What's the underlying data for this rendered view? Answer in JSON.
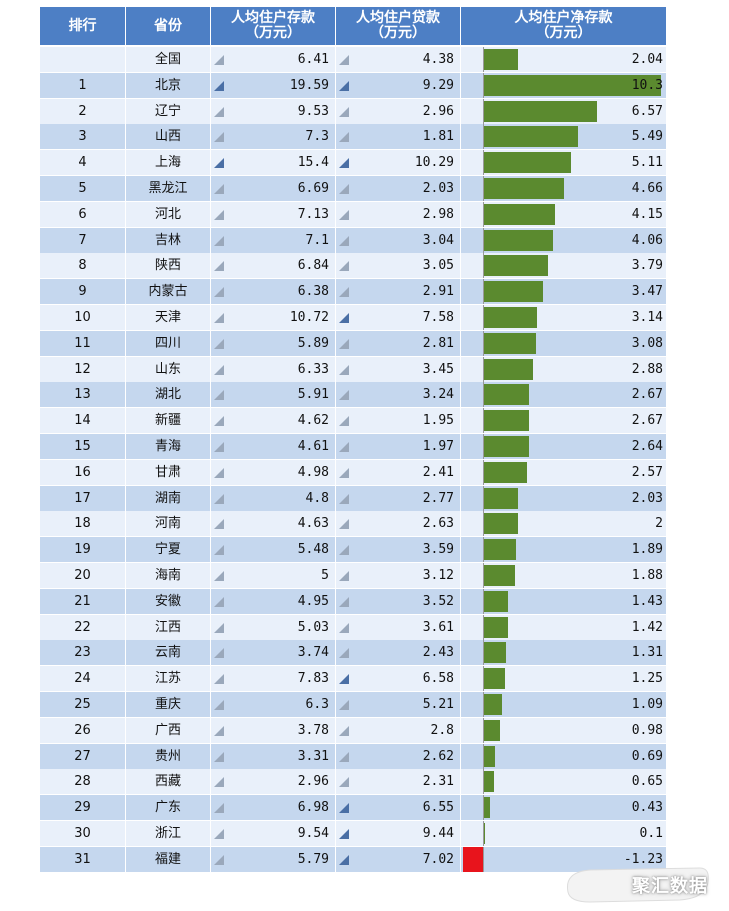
{
  "header": {
    "rank": "排行",
    "province": "省份",
    "deposit": "人均住户存款\n（万元）",
    "loan": "人均住户贷款\n（万元）",
    "net": "人均住户净存款\n（万元）"
  },
  "colors": {
    "header_bg": "#4d7fc5",
    "row_light": "#e9f0fa",
    "row_dark": "#c5d7ee",
    "bar_pos": "#5b8a2f",
    "bar_neg": "#e8141c"
  },
  "watermark": "聚汇数据",
  "chart_data": {
    "type": "table",
    "columns": [
      "排行",
      "省份",
      "人均住户存款（万元）",
      "人均住户贷款（万元）",
      "人均住户净存款（万元）"
    ],
    "rows": [
      {
        "rank": "",
        "province": "全国",
        "deposit": "6.41",
        "loan": "4.38",
        "net": "2.04"
      },
      {
        "rank": "1",
        "province": "北京",
        "deposit": "19.59",
        "loan": "9.29",
        "net": "10.3"
      },
      {
        "rank": "2",
        "province": "辽宁",
        "deposit": "9.53",
        "loan": "2.96",
        "net": "6.57"
      },
      {
        "rank": "3",
        "province": "山西",
        "deposit": "7.3",
        "loan": "1.81",
        "net": "5.49"
      },
      {
        "rank": "4",
        "province": "上海",
        "deposit": "15.4",
        "loan": "10.29",
        "net": "5.11"
      },
      {
        "rank": "5",
        "province": "黑龙江",
        "deposit": "6.69",
        "loan": "2.03",
        "net": "4.66"
      },
      {
        "rank": "6",
        "province": "河北",
        "deposit": "7.13",
        "loan": "2.98",
        "net": "4.15"
      },
      {
        "rank": "7",
        "province": "吉林",
        "deposit": "7.1",
        "loan": "3.04",
        "net": "4.06"
      },
      {
        "rank": "8",
        "province": "陕西",
        "deposit": "6.84",
        "loan": "3.05",
        "net": "3.79"
      },
      {
        "rank": "9",
        "province": "内蒙古",
        "deposit": "6.38",
        "loan": "2.91",
        "net": "3.47"
      },
      {
        "rank": "10",
        "province": "天津",
        "deposit": "10.72",
        "loan": "7.58",
        "net": "3.14"
      },
      {
        "rank": "11",
        "province": "四川",
        "deposit": "5.89",
        "loan": "2.81",
        "net": "3.08"
      },
      {
        "rank": "12",
        "province": "山东",
        "deposit": "6.33",
        "loan": "3.45",
        "net": "2.88"
      },
      {
        "rank": "13",
        "province": "湖北",
        "deposit": "5.91",
        "loan": "3.24",
        "net": "2.67"
      },
      {
        "rank": "14",
        "province": "新疆",
        "deposit": "4.62",
        "loan": "1.95",
        "net": "2.67"
      },
      {
        "rank": "15",
        "province": "青海",
        "deposit": "4.61",
        "loan": "1.97",
        "net": "2.64"
      },
      {
        "rank": "16",
        "province": "甘肃",
        "deposit": "4.98",
        "loan": "2.41",
        "net": "2.57"
      },
      {
        "rank": "17",
        "province": "湖南",
        "deposit": "4.8",
        "loan": "2.77",
        "net": "2.03"
      },
      {
        "rank": "18",
        "province": "河南",
        "deposit": "4.63",
        "loan": "2.63",
        "net": "2"
      },
      {
        "rank": "19",
        "province": "宁夏",
        "deposit": "5.48",
        "loan": "3.59",
        "net": "1.89"
      },
      {
        "rank": "20",
        "province": "海南",
        "deposit": "5",
        "loan": "3.12",
        "net": "1.88"
      },
      {
        "rank": "21",
        "province": "安徽",
        "deposit": "4.95",
        "loan": "3.52",
        "net": "1.43"
      },
      {
        "rank": "22",
        "province": "江西",
        "deposit": "5.03",
        "loan": "3.61",
        "net": "1.42"
      },
      {
        "rank": "23",
        "province": "云南",
        "deposit": "3.74",
        "loan": "2.43",
        "net": "1.31"
      },
      {
        "rank": "24",
        "province": "江苏",
        "deposit": "7.83",
        "loan": "6.58",
        "net": "1.25"
      },
      {
        "rank": "25",
        "province": "重庆",
        "deposit": "6.3",
        "loan": "5.21",
        "net": "1.09"
      },
      {
        "rank": "26",
        "province": "广西",
        "deposit": "3.78",
        "loan": "2.8",
        "net": "0.98"
      },
      {
        "rank": "27",
        "province": "贵州",
        "deposit": "3.31",
        "loan": "2.62",
        "net": "0.69"
      },
      {
        "rank": "28",
        "province": "西藏",
        "deposit": "2.96",
        "loan": "2.31",
        "net": "0.65"
      },
      {
        "rank": "29",
        "province": "广东",
        "deposit": "6.98",
        "loan": "6.55",
        "net": "0.43"
      },
      {
        "rank": "30",
        "province": "浙江",
        "deposit": "9.54",
        "loan": "9.44",
        "net": "0.1"
      },
      {
        "rank": "31",
        "province": "福建",
        "deposit": "5.79",
        "loan": "7.02",
        "net": "-1.23"
      }
    ]
  }
}
